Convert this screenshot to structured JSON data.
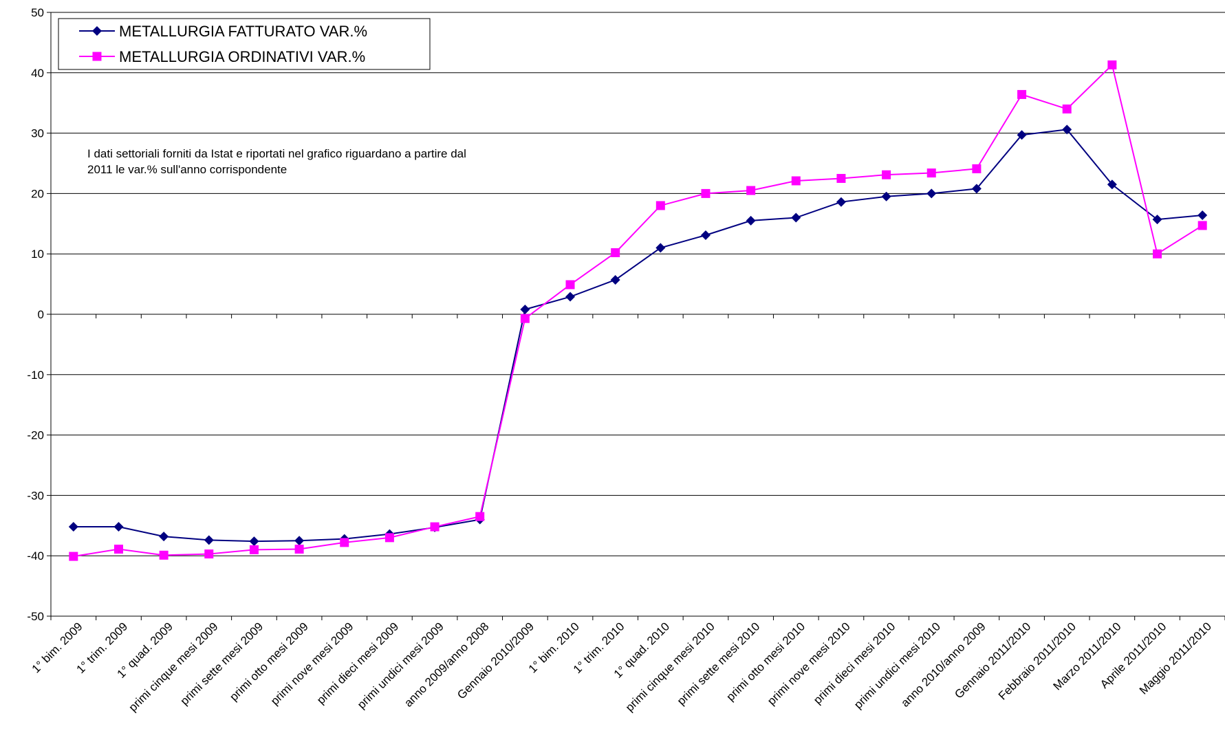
{
  "chart_data": {
    "type": "line",
    "categories": [
      "1° bim. 2009",
      "1° trim. 2009",
      "1° quad. 2009",
      "primi cinque mesi 2009",
      "primi sette mesi 2009",
      "primi otto mesi 2009",
      "primi nove mesi 2009",
      "primi dieci mesi 2009",
      "primi undici mesi 2009",
      "anno 2009/anno 2008",
      "Gennaio 2010/2009",
      "1° bim. 2010",
      "1° trim. 2010",
      "1° quad. 2010",
      "primi cinque mesi 2010",
      "primi sette mesi 2010",
      "primi otto mesi 2010",
      "primi nove mesi 2010",
      "primi dieci mesi 2010",
      "primi undici mesi 2010",
      "anno 2010/anno 2009",
      "Gennaio 2011/2010",
      "Febbraio 2011/2010",
      "Marzo 2011/2010",
      "Aprile 2011/2010",
      "Maggio 2011/2010"
    ],
    "series": [
      {
        "name": "METALLURGIA FATTURATO VAR.%",
        "color": "#000080",
        "marker": "diamond",
        "values": [
          -35.2,
          -35.2,
          -36.8,
          -37.4,
          -37.6,
          -37.5,
          -37.2,
          -36.4,
          -35.3,
          -34.0,
          0.8,
          2.9,
          5.7,
          11.0,
          13.1,
          15.5,
          16.0,
          18.6,
          19.5,
          20.0,
          20.8,
          29.7,
          30.6,
          21.5,
          15.7,
          16.4
        ]
      },
      {
        "name": "METALLURGIA ORDINATIVI VAR.%",
        "color": "#ff00ff",
        "marker": "square",
        "values": [
          -40.1,
          -38.9,
          -39.9,
          -39.7,
          -39.0,
          -38.9,
          -37.8,
          -37.0,
          -35.2,
          -33.5,
          -0.7,
          4.9,
          10.2,
          18.0,
          20.0,
          20.5,
          22.1,
          22.5,
          23.1,
          23.4,
          24.1,
          36.4,
          34.0,
          41.3,
          10.0,
          14.7
        ]
      }
    ],
    "ylim": [
      -50,
      50
    ],
    "yticks": [
      -50,
      -40,
      -30,
      -20,
      -10,
      0,
      10,
      20,
      30,
      40,
      50
    ],
    "grid": true,
    "legend": "top-left",
    "annotation": "I dati settoriali forniti da Istat e riportati nel grafico riguardano a partire dal 2011 le var.% sull'anno corrispondente"
  }
}
